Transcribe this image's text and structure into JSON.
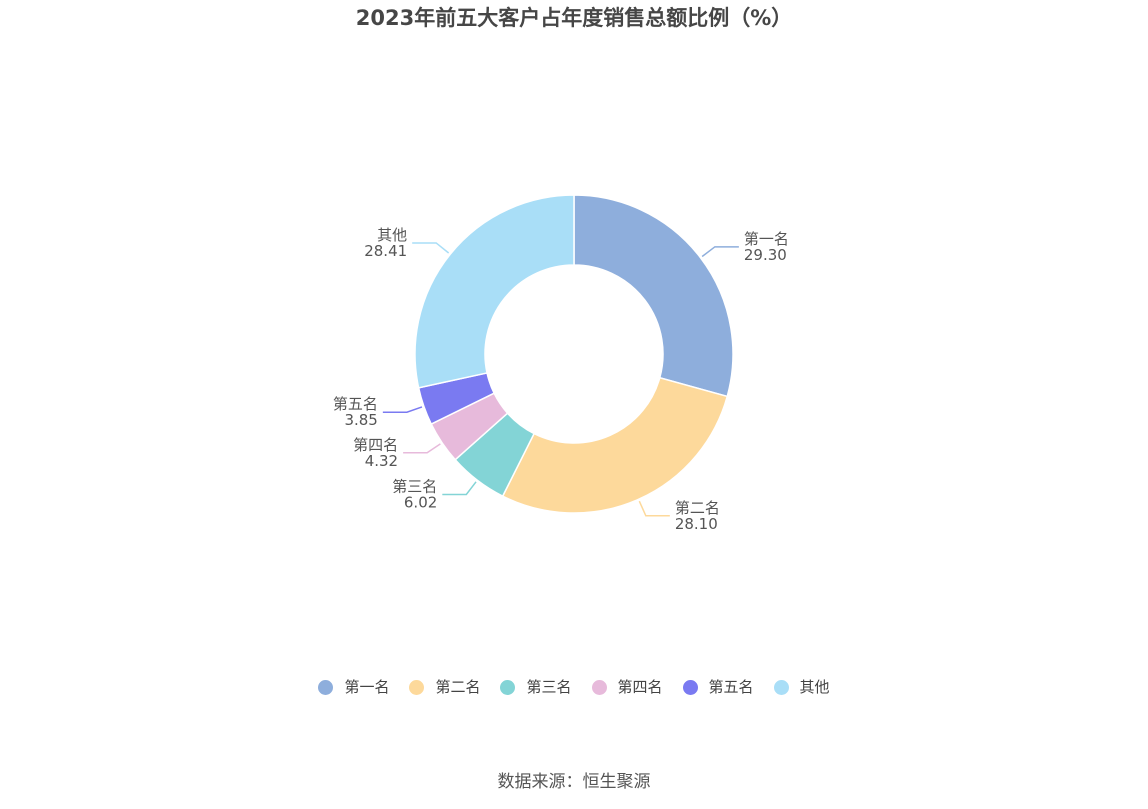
{
  "chart_data": {
    "type": "pie",
    "variant": "donut",
    "title": "2023年前五大客户占年度销售总额比例（%）",
    "legend_position": "bottom",
    "slices": [
      {
        "name": "第一名",
        "value": 29.3,
        "label": "29.30",
        "color": "#8EAEDC"
      },
      {
        "name": "第二名",
        "value": 28.1,
        "label": "28.10",
        "color": "#FDD99B"
      },
      {
        "name": "第三名",
        "value": 6.02,
        "label": "6.02",
        "color": "#83D4D6"
      },
      {
        "name": "第四名",
        "value": 4.32,
        "label": "4.32",
        "color": "#E7BADB"
      },
      {
        "name": "第五名",
        "value": 3.85,
        "label": "3.85",
        "color": "#7A7AF1"
      },
      {
        "name": "其他",
        "value": 28.41,
        "label": "28.41",
        "color": "#A9DEF7"
      }
    ]
  },
  "source": "数据来源：恒生聚源"
}
